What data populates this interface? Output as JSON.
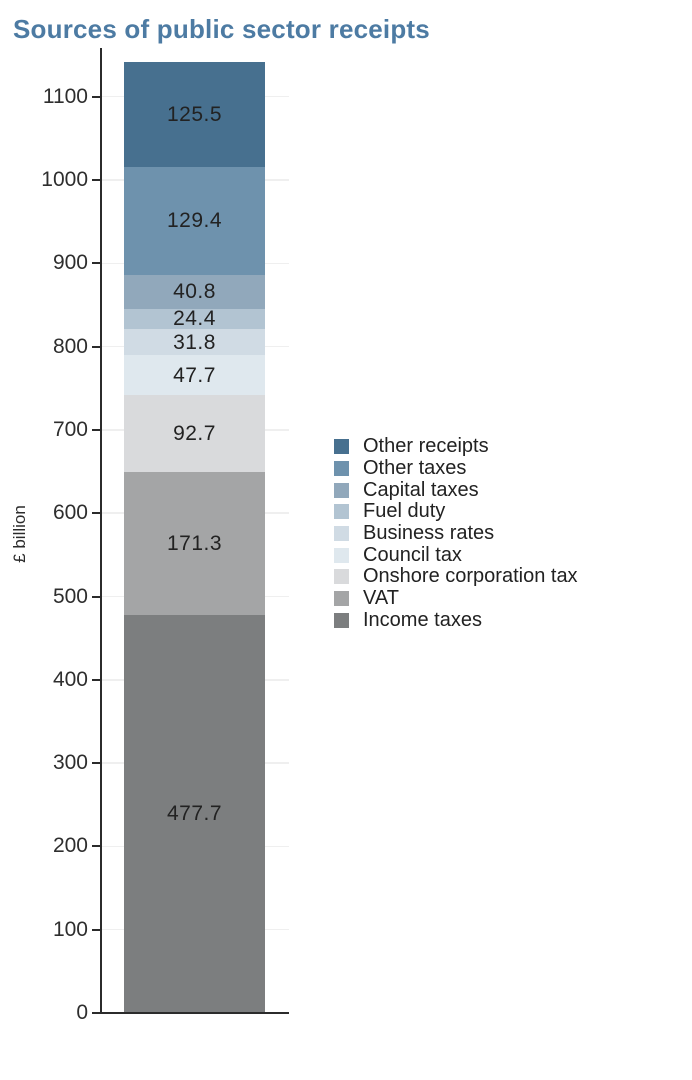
{
  "header": {
    "title": "Sources of public sector receipts",
    "title_color": "#4d7ba3"
  },
  "chart_data": {
    "type": "bar",
    "stacked": true,
    "title": "Sources of public sector receipts",
    "xlabel": "",
    "ylabel": "£ billion",
    "ylim": [
      0,
      1141.3
    ],
    "yticks": [
      0,
      100,
      200,
      300,
      400,
      500,
      600,
      700,
      800,
      900,
      1000,
      1100
    ],
    "grid": true,
    "legend_position": "right",
    "total": 1141.3,
    "segments_top_to_bottom": [
      {
        "label": "Other receipts",
        "value": 125.5,
        "color": "#47708f"
      },
      {
        "label": "Other taxes",
        "value": 129.4,
        "color": "#6e92ad"
      },
      {
        "label": "Capital taxes",
        "value": 40.8,
        "color": "#91a8bb"
      },
      {
        "label": "Fuel duty",
        "value": 24.4,
        "color": "#b2c4d2"
      },
      {
        "label": "Business rates",
        "value": 31.8,
        "color": "#d0dbe4"
      },
      {
        "label": "Council tax",
        "value": 47.7,
        "color": "#dfe8ee"
      },
      {
        "label": "Onshore corporation tax",
        "value": 92.7,
        "color": "#d9dadc"
      },
      {
        "label": "VAT",
        "value": 171.3,
        "color": "#a4a5a6"
      },
      {
        "label": "Income taxes",
        "value": 477.7,
        "color": "#7c7e7f"
      }
    ],
    "colors": {
      "axis": "#2b2b2b",
      "gridline": "#efefef",
      "value_label": "#222222"
    }
  }
}
